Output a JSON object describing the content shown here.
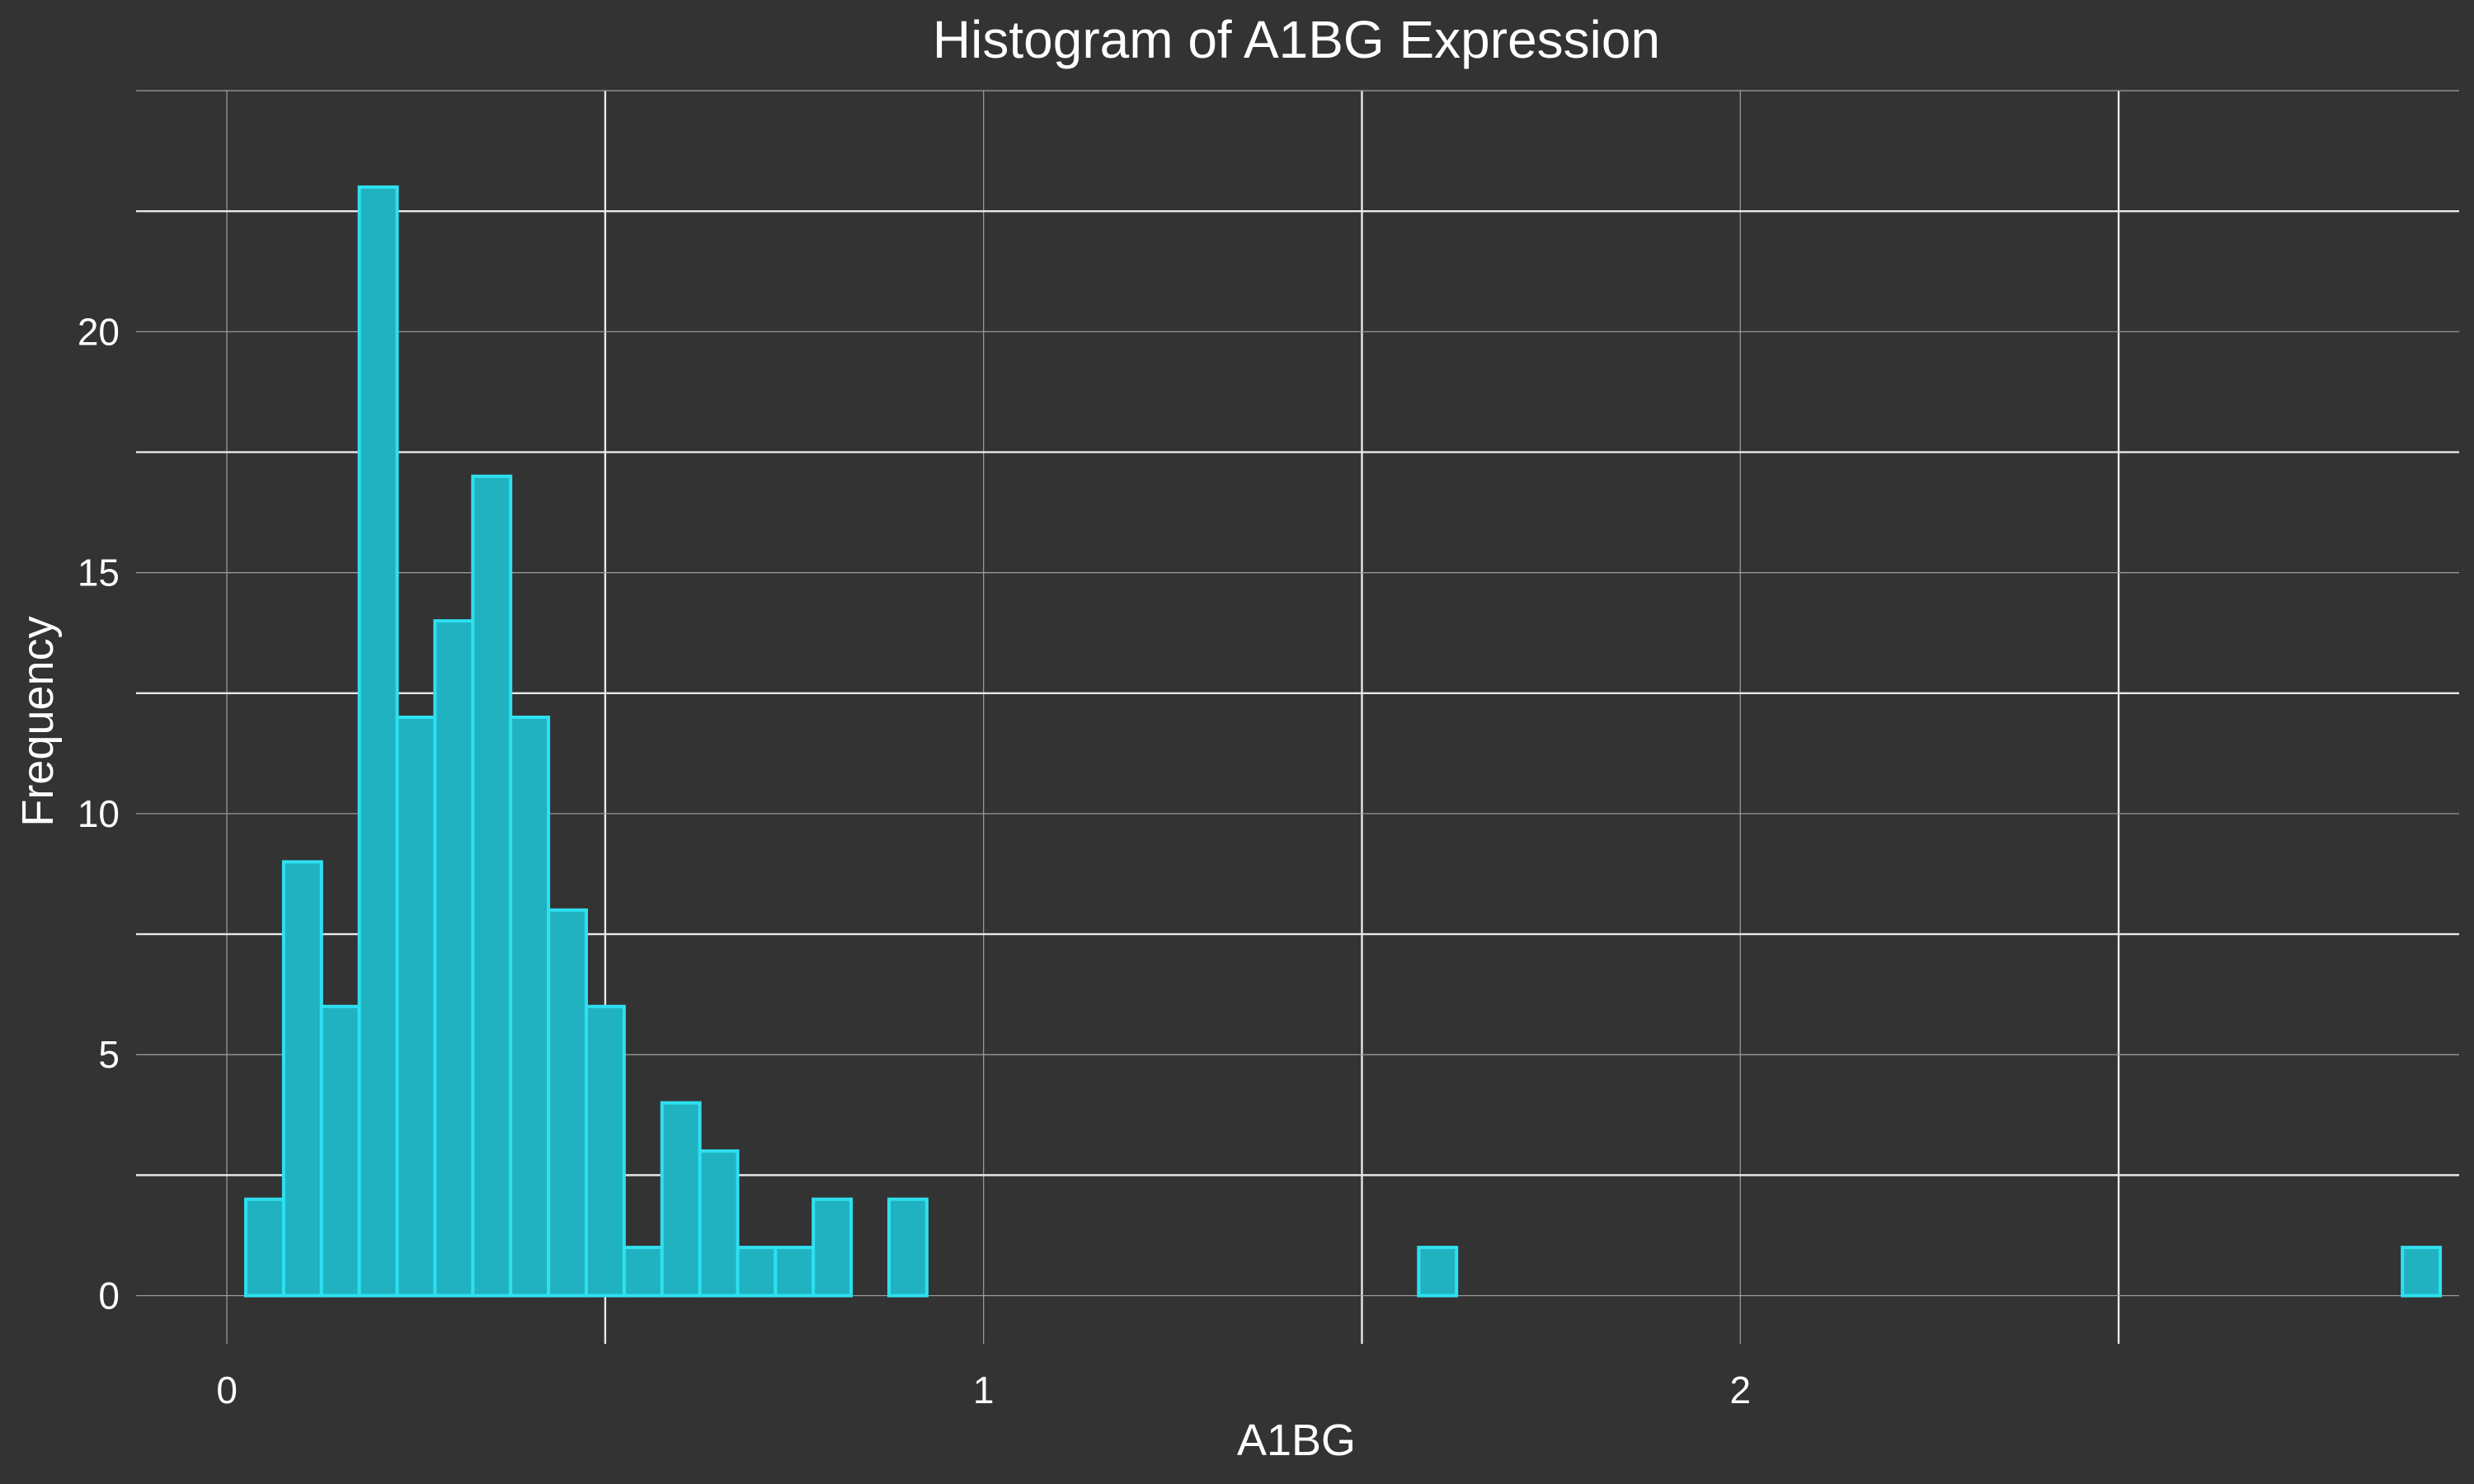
{
  "chart_data": {
    "type": "bar",
    "subtype": "histogram",
    "title": "Histogram of A1BG Expression",
    "xlabel": "A1BG",
    "ylabel": "Frequency",
    "xlim": [
      -0.12,
      2.95
    ],
    "ylim": [
      -1.0,
      25.0
    ],
    "x_ticks": [
      0,
      1,
      2
    ],
    "y_ticks": [
      0,
      5,
      10,
      15,
      20
    ],
    "grid": true,
    "legend": "none",
    "bin_start": 0.025,
    "bin_width": 0.05,
    "bin_counts": [
      2,
      9,
      6,
      23,
      12,
      14,
      17,
      12,
      8,
      6,
      1,
      4,
      3,
      1,
      1,
      2,
      0,
      2,
      0,
      0,
      0,
      0,
      0,
      0,
      0,
      0,
      0,
      0,
      0,
      0,
      0,
      1,
      0,
      0,
      0,
      0,
      0,
      0,
      0,
      0,
      0,
      0,
      0,
      0,
      0,
      0,
      0,
      0,
      0,
      0,
      0,
      0,
      0,
      0,
      0,
      0,
      0,
      1
    ],
    "colors": {
      "background": "#333333",
      "bar_fill": "#20b2c0",
      "bar_outline": "#2ee0f0",
      "grid": "#e8e8e8",
      "text": "#ffffff"
    }
  }
}
